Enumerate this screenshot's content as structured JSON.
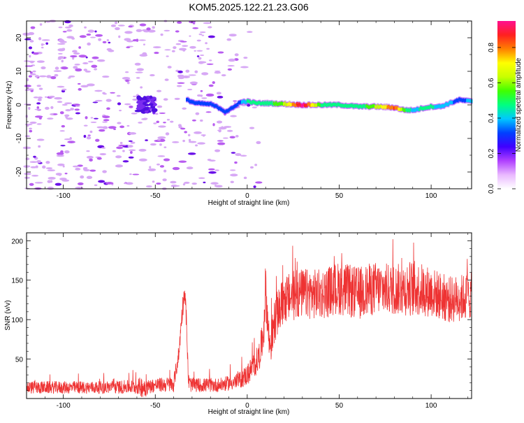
{
  "title": "KOM5.2025.122.21.23.G06",
  "chart_data": [
    {
      "type": "heatmap",
      "name": "spectrogram",
      "xlabel": "Height of straight line (km)",
      "ylabel": "Frequency (Hz)",
      "xlim": [
        -120,
        122
      ],
      "ylim": [
        -25,
        25
      ],
      "xticks": [
        -100,
        -50,
        0,
        50,
        100
      ],
      "yticks": [
        -20,
        -10,
        0,
        10,
        20
      ],
      "colorbar": {
        "label": "Normalized spectral amplitude",
        "range": [
          0,
          0.95
        ],
        "ticks": [
          0.0,
          0.2,
          0.4,
          0.6,
          0.8
        ],
        "tick_labels": [
          "0.0",
          "0.2",
          "0.4",
          "0.6",
          "0.8"
        ],
        "colors": [
          "#ffffff",
          "#e9b8ff",
          "#b040ff",
          "#4000ff",
          "#0040ff",
          "#00c8ff",
          "#00ff80",
          "#40ff00",
          "#c8ff00",
          "#ffff00",
          "#ff8000",
          "#ff2020",
          "#ff1090"
        ]
      },
      "ridge": {
        "x": [
          -33,
          -28,
          -20,
          -15,
          -12,
          -8,
          -5,
          -2,
          0,
          5,
          10,
          20,
          30,
          40,
          50,
          60,
          70,
          80,
          85,
          90,
          95,
          100,
          105,
          110,
          115,
          122
        ],
        "freq": [
          1.5,
          0.5,
          0.2,
          -1.0,
          -2.0,
          -1.0,
          0.5,
          1.0,
          1.0,
          0.5,
          0.5,
          0.3,
          0.0,
          0.0,
          0.0,
          -0.5,
          -0.5,
          -0.8,
          -1.5,
          -1.6,
          -1.0,
          -0.5,
          -0.5,
          0.5,
          1.5,
          1.0
        ],
        "amplitude": [
          0.3,
          0.3,
          0.3,
          0.3,
          0.3,
          0.3,
          0.3,
          0.4,
          0.45,
          0.5,
          0.45,
          0.6,
          0.95,
          0.5,
          0.5,
          0.45,
          0.6,
          0.85,
          0.55,
          0.4,
          0.45,
          0.45,
          0.4,
          0.4,
          0.3,
          0.4
        ]
      },
      "noise_x_range": [
        -120,
        10
      ],
      "cluster_x": -55
    },
    {
      "type": "line",
      "name": "snr",
      "xlabel": "Height of straight line (km)",
      "ylabel": "SNR (v/v)",
      "xlim": [
        -120,
        122
      ],
      "ylim": [
        0,
        210
      ],
      "xticks": [
        -100,
        -50,
        0,
        50,
        100
      ],
      "yticks": [
        50,
        100,
        150,
        200
      ],
      "color": "#ee3333",
      "series": [
        {
          "x": [
            -120,
            -100,
            -80,
            -60,
            -56,
            -54,
            -50,
            -40,
            -37,
            -36,
            -35,
            -34,
            -33,
            -32,
            -31,
            -30,
            -25,
            -15,
            -5,
            0,
            3,
            6,
            8,
            9,
            10,
            11,
            12,
            13,
            15,
            18,
            20,
            25,
            30,
            40,
            50,
            60,
            70,
            80,
            90,
            100,
            110,
            122
          ],
          "y": [
            14,
            14,
            14,
            15,
            15,
            15,
            17,
            18,
            60,
            95,
            118,
            138,
            95,
            22,
            18,
            17,
            17,
            17,
            22,
            30,
            40,
            50,
            70,
            90,
            145,
            100,
            70,
            70,
            100,
            115,
            125,
            130,
            133,
            132,
            140,
            133,
            140,
            138,
            140,
            135,
            125,
            130
          ],
          "spread": [
            8,
            8,
            8,
            9,
            16,
            9,
            9,
            10,
            12,
            12,
            14,
            14,
            14,
            10,
            10,
            9,
            9,
            9,
            10,
            14,
            16,
            18,
            22,
            28,
            30,
            30,
            26,
            24,
            28,
            30,
            30,
            32,
            32,
            32,
            34,
            34,
            34,
            32,
            36,
            32,
            30,
            30
          ]
        }
      ]
    }
  ]
}
